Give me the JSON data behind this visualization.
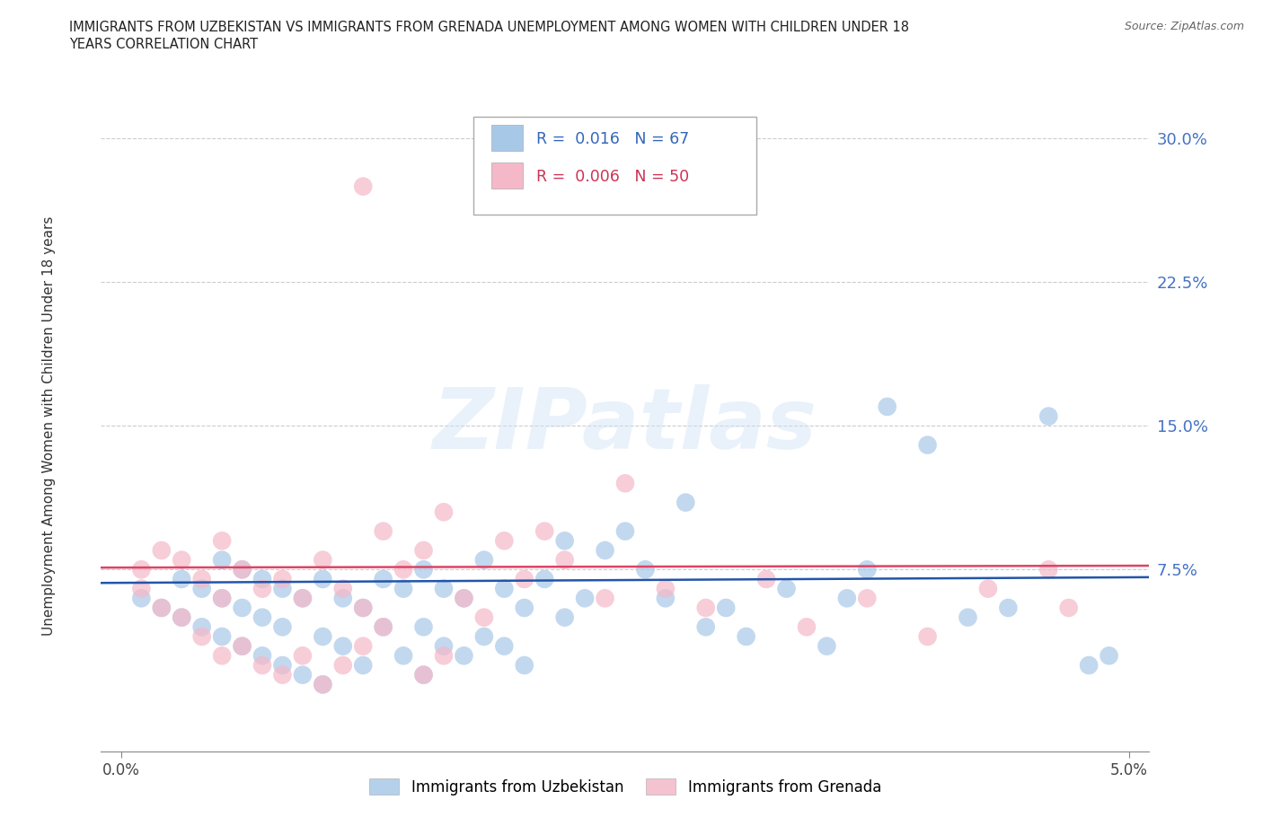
{
  "title_line1": "IMMIGRANTS FROM UZBEKISTAN VS IMMIGRANTS FROM GRENADA UNEMPLOYMENT AMONG WOMEN WITH CHILDREN UNDER 18",
  "title_line2": "YEARS CORRELATION CHART",
  "source": "Source: ZipAtlas.com",
  "ylabel": "Unemployment Among Women with Children Under 18 years",
  "r_uzbekistan": "0.016",
  "n_uzbekistan": "67",
  "r_grenada": "0.006",
  "n_grenada": "50",
  "color_uzbekistan": "#a8c8e8",
  "color_grenada": "#f4b8c8",
  "line_color_uzbekistan": "#2255aa",
  "line_color_grenada": "#dd4466",
  "legend_uzb_color": "#a8c8e8",
  "legend_gren_color": "#f4b8c8",
  "yticks": [
    0.0,
    0.075,
    0.15,
    0.225,
    0.3
  ],
  "ytick_labels": [
    "",
    "7.5%",
    "15.0%",
    "22.5%",
    "30.0%"
  ],
  "ymin": -0.02,
  "ymax": 0.32,
  "xmin": -0.001,
  "xmax": 0.051,
  "trend_uzb_x0": -0.001,
  "trend_uzb_x1": 0.051,
  "trend_uzb_y0": 0.068,
  "trend_uzb_y1": 0.071,
  "trend_gren_x0": -0.001,
  "trend_gren_x1": 0.051,
  "trend_gren_y0": 0.076,
  "trend_gren_y1": 0.077,
  "watermark_text": "ZIPatlas",
  "legend_label_uzb": "Immigrants from Uzbekistan",
  "legend_label_gren": "Immigrants from Grenada"
}
